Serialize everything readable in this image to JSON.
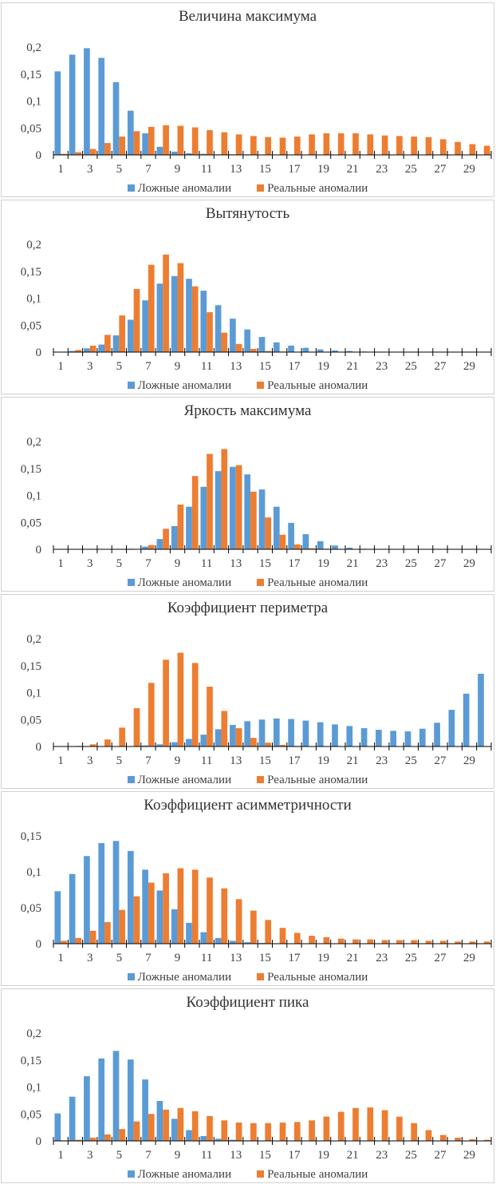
{
  "colors": {
    "series1": "#5B9BD5",
    "series2": "#ED7D31",
    "axis": "#000000"
  },
  "legend": {
    "series1": "Ложные аномалии",
    "series2": "Реальные аномалии"
  },
  "chart_data": [
    {
      "type": "bar",
      "title": "Величина максимума",
      "ylim": [
        0,
        0.2
      ],
      "yticks": [
        "0",
        "0,05",
        "0,1",
        "0,15",
        "0,2"
      ],
      "xtick_labels": [
        "1",
        "3",
        "5",
        "7",
        "9",
        "11",
        "13",
        "15",
        "17",
        "19",
        "21",
        "23",
        "25",
        "27",
        "29"
      ],
      "categories": [
        1,
        2,
        3,
        4,
        5,
        6,
        7,
        8,
        9,
        10,
        11,
        12,
        13,
        14,
        15,
        16,
        17,
        18,
        19,
        20,
        21,
        22,
        23,
        24,
        25,
        26,
        27,
        28,
        29,
        30
      ],
      "series": [
        {
          "name": "Ложные аномалии",
          "values": [
            0.155,
            0.186,
            0.198,
            0.18,
            0.135,
            0.082,
            0.04,
            0.015,
            0.006,
            0.003,
            0.002,
            0.001,
            0.001,
            0.001,
            0,
            0,
            0,
            0,
            0,
            0,
            0,
            0,
            0,
            0,
            0,
            0,
            0,
            0,
            0,
            0
          ]
        },
        {
          "name": "Реальные аномалии",
          "values": [
            0.002,
            0.005,
            0.011,
            0.022,
            0.034,
            0.044,
            0.052,
            0.055,
            0.054,
            0.051,
            0.046,
            0.042,
            0.038,
            0.035,
            0.033,
            0.032,
            0.034,
            0.038,
            0.04,
            0.04,
            0.04,
            0.038,
            0.036,
            0.035,
            0.034,
            0.033,
            0.029,
            0.024,
            0.02,
            0.017
          ]
        }
      ]
    },
    {
      "type": "bar",
      "title": "Вытянутость",
      "ylim": [
        0,
        0.2
      ],
      "yticks": [
        "0",
        "0,05",
        "0,1",
        "0,15",
        "0,2"
      ],
      "xtick_labels": [
        "1",
        "3",
        "5",
        "7",
        "9",
        "11",
        "13",
        "15",
        "17",
        "19",
        "21",
        "23",
        "25",
        "27",
        "29"
      ],
      "categories": [
        1,
        2,
        3,
        4,
        5,
        6,
        7,
        8,
        9,
        10,
        11,
        12,
        13,
        14,
        15,
        16,
        17,
        18,
        19,
        20,
        21,
        22,
        23,
        24,
        25,
        26,
        27,
        28,
        29,
        30
      ],
      "series": [
        {
          "name": "Ложные аномалии",
          "values": [
            0,
            0.002,
            0.007,
            0.014,
            0.031,
            0.06,
            0.096,
            0.127,
            0.141,
            0.136,
            0.114,
            0.087,
            0.062,
            0.042,
            0.028,
            0.018,
            0.012,
            0.008,
            0.005,
            0.003,
            0.002,
            0.001,
            0,
            0,
            0,
            0,
            0,
            0,
            0,
            0
          ]
        },
        {
          "name": "Реальные аномалии",
          "values": [
            0,
            0.004,
            0.012,
            0.032,
            0.068,
            0.117,
            0.162,
            0.181,
            0.165,
            0.122,
            0.074,
            0.036,
            0.015,
            0.006,
            0.002,
            0.001,
            0,
            0,
            0,
            0,
            0,
            0,
            0,
            0,
            0,
            0,
            0,
            0,
            0,
            0
          ]
        }
      ]
    },
    {
      "type": "bar",
      "title": "Яркость максимума",
      "ylim": [
        0,
        0.2
      ],
      "yticks": [
        "0",
        "0,05",
        "0,1",
        "0,15",
        "0,2"
      ],
      "xtick_labels": [
        "1",
        "3",
        "5",
        "7",
        "9",
        "11",
        "13",
        "15",
        "17",
        "19",
        "21",
        "23",
        "25",
        "27",
        "29"
      ],
      "categories": [
        1,
        2,
        3,
        4,
        5,
        6,
        7,
        8,
        9,
        10,
        11,
        12,
        13,
        14,
        15,
        16,
        17,
        18,
        19,
        20,
        21,
        22,
        23,
        24,
        25,
        26,
        27,
        28,
        29,
        30
      ],
      "series": [
        {
          "name": "Ложные аномалии",
          "values": [
            0,
            0,
            0,
            0,
            0,
            0.001,
            0.005,
            0.019,
            0.043,
            0.079,
            0.116,
            0.145,
            0.153,
            0.139,
            0.111,
            0.079,
            0.049,
            0.028,
            0.015,
            0.007,
            0.003,
            0.001,
            0,
            0,
            0,
            0,
            0,
            0,
            0,
            0
          ]
        },
        {
          "name": "Реальные аномалии",
          "values": [
            0,
            0,
            0,
            0,
            0,
            0,
            0.008,
            0.038,
            0.083,
            0.136,
            0.177,
            0.186,
            0.156,
            0.107,
            0.059,
            0.027,
            0.009,
            0.002,
            0.001,
            0,
            0,
            0,
            0,
            0,
            0,
            0,
            0,
            0,
            0,
            0
          ]
        }
      ]
    },
    {
      "type": "bar",
      "title": "Коэффициент периметра",
      "ylim": [
        0,
        0.2
      ],
      "yticks": [
        "0",
        "0,05",
        "0,1",
        "0,15",
        "0,2"
      ],
      "xtick_labels": [
        "1",
        "3",
        "5",
        "7",
        "9",
        "11",
        "13",
        "15",
        "17",
        "19",
        "21",
        "23",
        "25",
        "27",
        "29"
      ],
      "categories": [
        1,
        2,
        3,
        4,
        5,
        6,
        7,
        8,
        9,
        10,
        11,
        12,
        13,
        14,
        15,
        16,
        17,
        18,
        19,
        20,
        21,
        22,
        23,
        24,
        25,
        26,
        27,
        28,
        29,
        30
      ],
      "series": [
        {
          "name": "Ложные аномалии",
          "values": [
            0,
            0,
            0,
            0,
            0,
            0,
            0.002,
            0.004,
            0.008,
            0.014,
            0.022,
            0.032,
            0.04,
            0.047,
            0.05,
            0.052,
            0.051,
            0.048,
            0.045,
            0.041,
            0.038,
            0.034,
            0.031,
            0.029,
            0.028,
            0.033,
            0.044,
            0.068,
            0.098,
            0.135
          ]
        },
        {
          "name": "Реальные аномалии",
          "values": [
            0,
            0.001,
            0.004,
            0.013,
            0.035,
            0.071,
            0.118,
            0.161,
            0.174,
            0.155,
            0.111,
            0.066,
            0.034,
            0.016,
            0.007,
            0.003,
            0.001,
            0,
            0,
            0,
            0,
            0,
            0,
            0,
            0,
            0,
            0,
            0,
            0,
            0
          ]
        }
      ]
    },
    {
      "type": "bar",
      "title": "Коэффициент асимметричности",
      "ylim": [
        0,
        0.15
      ],
      "yticks": [
        "0",
        "0,05",
        "0,1",
        "0,15"
      ],
      "xtick_labels": [
        "1",
        "3",
        "5",
        "7",
        "9",
        "11",
        "13",
        "15",
        "17",
        "19",
        "21",
        "23",
        "25",
        "27",
        "29"
      ],
      "categories": [
        1,
        2,
        3,
        4,
        5,
        6,
        7,
        8,
        9,
        10,
        11,
        12,
        13,
        14,
        15,
        16,
        17,
        18,
        19,
        20,
        21,
        22,
        23,
        24,
        25,
        26,
        27,
        28,
        29,
        30
      ],
      "series": [
        {
          "name": "Ложные аномалии",
          "values": [
            0.073,
            0.097,
            0.122,
            0.14,
            0.143,
            0.129,
            0.103,
            0.074,
            0.048,
            0.029,
            0.016,
            0.008,
            0.004,
            0.002,
            0.001,
            0,
            0,
            0,
            0,
            0,
            0,
            0,
            0,
            0,
            0,
            0,
            0,
            0,
            0,
            0
          ]
        },
        {
          "name": "Реальные аномалии",
          "values": [
            0.004,
            0.008,
            0.018,
            0.03,
            0.047,
            0.066,
            0.085,
            0.098,
            0.105,
            0.103,
            0.092,
            0.077,
            0.062,
            0.046,
            0.033,
            0.022,
            0.015,
            0.011,
            0.009,
            0.007,
            0.006,
            0.006,
            0.005,
            0.005,
            0.005,
            0.004,
            0.004,
            0.003,
            0.003,
            0.003
          ]
        }
      ]
    },
    {
      "type": "bar",
      "title": "Коэффициент пика",
      "ylim": [
        0,
        0.2
      ],
      "yticks": [
        "0",
        "0,05",
        "0,1",
        "0,15",
        "0,2"
      ],
      "xtick_labels": [
        "1",
        "3",
        "5",
        "7",
        "9",
        "11",
        "13",
        "15",
        "17",
        "19",
        "21",
        "23",
        "25",
        "27",
        "29"
      ],
      "categories": [
        1,
        2,
        3,
        4,
        5,
        6,
        7,
        8,
        9,
        10,
        11,
        12,
        13,
        14,
        15,
        16,
        17,
        18,
        19,
        20,
        21,
        22,
        23,
        24,
        25,
        26,
        27,
        28,
        29,
        30
      ],
      "series": [
        {
          "name": "Ложные аномалии",
          "values": [
            0.051,
            0.082,
            0.12,
            0.153,
            0.167,
            0.151,
            0.114,
            0.074,
            0.041,
            0.02,
            0.009,
            0.004,
            0.002,
            0.001,
            0,
            0,
            0,
            0,
            0,
            0,
            0,
            0,
            0,
            0,
            0,
            0,
            0,
            0,
            0,
            0
          ]
        },
        {
          "name": "Реальные аномалии",
          "values": [
            0.001,
            0.002,
            0.006,
            0.012,
            0.022,
            0.036,
            0.05,
            0.058,
            0.061,
            0.055,
            0.046,
            0.038,
            0.034,
            0.033,
            0.033,
            0.034,
            0.035,
            0.038,
            0.045,
            0.054,
            0.061,
            0.062,
            0.057,
            0.045,
            0.033,
            0.02,
            0.011,
            0.006,
            0.003,
            0.002
          ]
        }
      ]
    }
  ]
}
